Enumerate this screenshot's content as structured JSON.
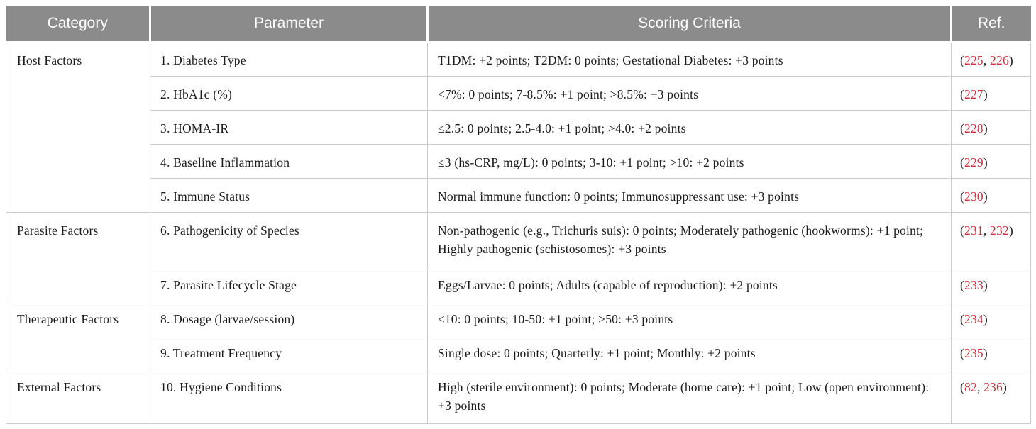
{
  "title": "Scoring criteria table",
  "colors": {
    "header_bg": "#8b8b8b",
    "header_text": "#ffffff",
    "border": "#cbcbcb",
    "body_text": "#1a1a1a",
    "ref_red": "#cf2e3c"
  },
  "table": {
    "headers": [
      "Category",
      "Parameter",
      "Scoring Criteria",
      "Ref."
    ],
    "groups": [
      {
        "category": "Host Factors",
        "rows": [
          {
            "parameter": "1. Diabetes Type",
            "criteria": "T1DM: +2 points; T2DM: 0 points; Gestational Diabetes: +3 points",
            "refs": [
              "225",
              "226"
            ]
          },
          {
            "parameter": "2. HbA1c (%)",
            "criteria": "<7%: 0 points; 7-8.5%: +1 point; >8.5%: +3 points",
            "refs": [
              "227"
            ]
          },
          {
            "parameter": "3. HOMA-IR",
            "criteria": "≤2.5: 0 points; 2.5-4.0: +1 point; >4.0: +2 points",
            "refs": [
              "228"
            ]
          },
          {
            "parameter": "4. Baseline Inflammation",
            "criteria": "≤3 (hs-CRP, mg/L): 0 points; 3-10: +1 point; >10: +2 points",
            "refs": [
              "229"
            ]
          },
          {
            "parameter": "5. Immune Status",
            "criteria": "Normal immune function: 0 points; Immunosuppressant use: +3 points",
            "refs": [
              "230"
            ]
          }
        ]
      },
      {
        "category": "Parasite Factors",
        "rows": [
          {
            "parameter": "6. Pathogenicity of Species",
            "criteria": "Non-pathogenic (e.g., Trichuris suis): 0 points; Moderately pathogenic (hookworms): +1 point; Highly pathogenic (schistosomes): +3 points",
            "refs": [
              "231",
              "232"
            ]
          },
          {
            "parameter": "7. Parasite Lifecycle Stage",
            "criteria": "Eggs/Larvae: 0 points; Adults (capable of reproduction): +2 points",
            "refs": [
              "233"
            ]
          }
        ]
      },
      {
        "category": "Therapeutic Factors",
        "rows": [
          {
            "parameter": "8. Dosage (larvae/session)",
            "criteria": "≤10: 0 points; 10-50: +1 point; >50: +3 points",
            "refs": [
              "234"
            ]
          },
          {
            "parameter": "9. Treatment Frequency",
            "criteria": "Single dose: 0 points; Quarterly: +1 point; Monthly: +2 points",
            "refs": [
              "235"
            ]
          }
        ]
      },
      {
        "category": "External Factors",
        "rows": [
          {
            "parameter": "10. Hygiene Conditions",
            "criteria": "High (sterile environment): 0 points; Moderate (home care): +1 point; Low (open environment): +3 points",
            "refs": [
              "82",
              "236"
            ]
          }
        ]
      }
    ]
  }
}
